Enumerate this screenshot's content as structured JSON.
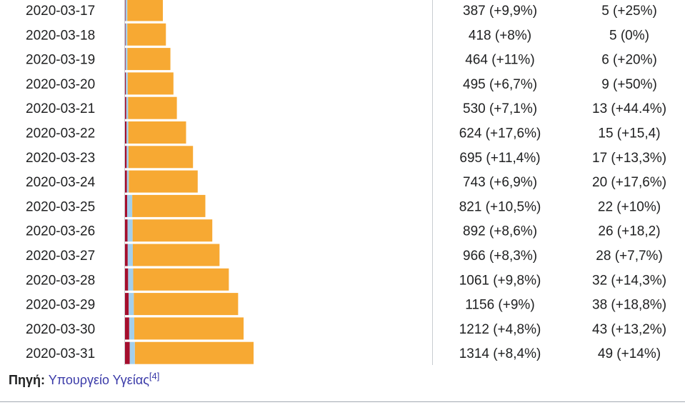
{
  "chart_data": {
    "type": "bar",
    "stacked": true,
    "categories": [
      "2020-03-17",
      "2020-03-18",
      "2020-03-19",
      "2020-03-20",
      "2020-03-21",
      "2020-03-22",
      "2020-03-23",
      "2020-03-24",
      "2020-03-25",
      "2020-03-26",
      "2020-03-27",
      "2020-03-28",
      "2020-03-29",
      "2020-03-30",
      "2020-03-31"
    ],
    "series": [
      {
        "color": "#a50e2d",
        "values": [
          5,
          5,
          6,
          9,
          13,
          15,
          17,
          20,
          22,
          26,
          28,
          32,
          38,
          43,
          49
        ]
      },
      {
        "color": "#a3cfec",
        "values": [
          19,
          19,
          19,
          19,
          19,
          19,
          19,
          19,
          52,
          52,
          52,
          52,
          52,
          52,
          52
        ]
      },
      {
        "color": "#f7a933",
        "values": [
          363,
          394,
          439,
          467,
          498,
          590,
          659,
          704,
          747,
          814,
          886,
          977,
          1066,
          1117,
          1213
        ]
      }
    ],
    "case_labels": [
      "387 (+9,9%)",
      "418 (+8%)",
      "464 (+11%)",
      "495 (+6,7%)",
      "530 (+7,1%)",
      "624 (+17,6%)",
      "695 (+11,4%)",
      "743 (+6,9%)",
      "821 (+10,5%)",
      "892 (+8,6%)",
      "966 (+8,3%)",
      "1061 (+9,8%)",
      "1156 (+9%)",
      "1212 (+4,8%)",
      "1314 (+8,4%)"
    ],
    "death_labels": [
      "5 (+25%)",
      "5 (0%)",
      "6 (+20%)",
      "9 (+50%)",
      "13 (+44.4%)",
      "15 (+15,4)",
      "17 (+13,3%)",
      "20 (+17,6%)",
      "22 (+10%)",
      "26 (+18,2)",
      "28 (+7,7%)",
      "32 (+14,3%)",
      "38 (+18,8%)",
      "43 (+13,2%)",
      "49 (+14%)"
    ]
  },
  "source": {
    "label": "Πηγή:",
    "link_text": "Υπουργείο Υγείας",
    "ref": "[4]"
  }
}
